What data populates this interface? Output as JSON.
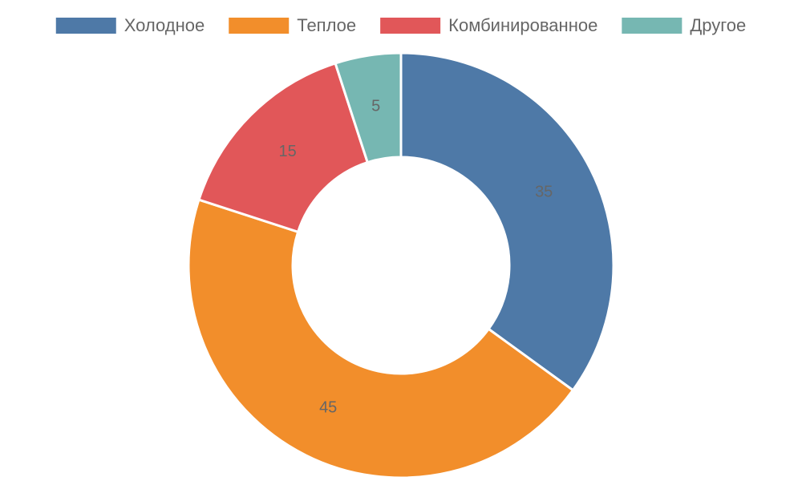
{
  "chart_data": {
    "type": "donut",
    "categories": [
      "Холодное",
      "Теплое",
      "Комбинированное",
      "Другое"
    ],
    "values": [
      35,
      45,
      15,
      5
    ],
    "colors": [
      "#4e79a7",
      "#f28e2b",
      "#e15759",
      "#76b7b2"
    ],
    "legend": "top"
  }
}
